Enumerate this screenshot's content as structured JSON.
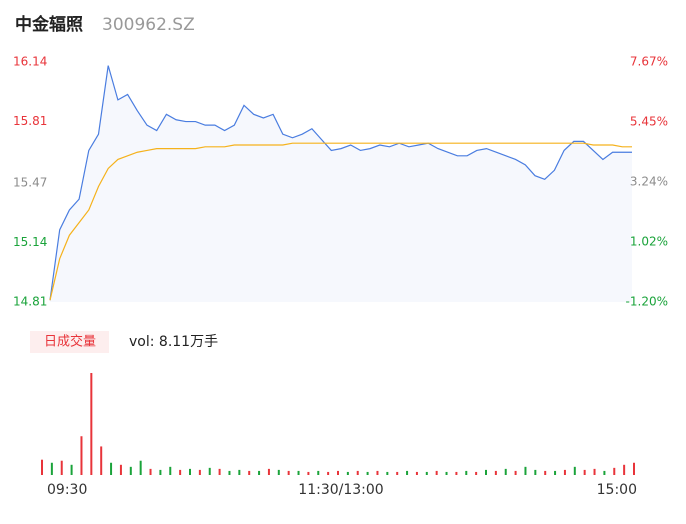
{
  "chart_data": [
    {
      "type": "line",
      "title": "中金辐照",
      "subtitle": "300962.SZ",
      "x": [
        0,
        4,
        8,
        12,
        16,
        20,
        24,
        28,
        32,
        36,
        40,
        44,
        48,
        52,
        56,
        60,
        64,
        68,
        72,
        76,
        80,
        84,
        88,
        92,
        96,
        100,
        104,
        108,
        112,
        116,
        120,
        124,
        128,
        132,
        136,
        140,
        144,
        148,
        152,
        156,
        160,
        164,
        168,
        172,
        176,
        180,
        184,
        188,
        192,
        196,
        200,
        204,
        208,
        212,
        216,
        220,
        224,
        228,
        232,
        236,
        240
      ],
      "xlim": [
        0,
        240
      ],
      "xticks": [
        {
          "value": 0,
          "label": "09:30"
        },
        {
          "value": 120,
          "label": "11:30/13:00"
        },
        {
          "value": 240,
          "label": "15:00"
        }
      ],
      "series": [
        {
          "color": "#4a7de0",
          "values": [
            14.82,
            15.21,
            15.32,
            15.38,
            15.65,
            15.74,
            16.12,
            15.93,
            15.96,
            15.87,
            15.79,
            15.76,
            15.85,
            15.82,
            15.81,
            15.81,
            15.79,
            15.79,
            15.76,
            15.79,
            15.9,
            15.85,
            15.83,
            15.85,
            15.74,
            15.72,
            15.74,
            15.77,
            15.71,
            15.65,
            15.66,
            15.68,
            15.65,
            15.66,
            15.68,
            15.67,
            15.69,
            15.67,
            15.68,
            15.69,
            15.66,
            15.64,
            15.62,
            15.62,
            15.65,
            15.66,
            15.64,
            15.62,
            15.6,
            15.57,
            15.51,
            15.49,
            15.54,
            15.65,
            15.7,
            15.7,
            15.65,
            15.6,
            15.64,
            15.64,
            15.64
          ]
        },
        {
          "color": "#f5b21c",
          "values": [
            14.82,
            15.05,
            15.18,
            15.25,
            15.32,
            15.45,
            15.55,
            15.6,
            15.62,
            15.64,
            15.65,
            15.66,
            15.66,
            15.66,
            15.66,
            15.66,
            15.67,
            15.67,
            15.67,
            15.68,
            15.68,
            15.68,
            15.68,
            15.68,
            15.68,
            15.69,
            15.69,
            15.69,
            15.69,
            15.69,
            15.69,
            15.69,
            15.69,
            15.69,
            15.69,
            15.69,
            15.69,
            15.69,
            15.69,
            15.69,
            15.69,
            15.69,
            15.69,
            15.69,
            15.69,
            15.69,
            15.69,
            15.69,
            15.69,
            15.69,
            15.69,
            15.69,
            15.69,
            15.69,
            15.69,
            15.69,
            15.68,
            15.68,
            15.68,
            15.67,
            15.67
          ]
        }
      ],
      "area_color": "#f6f8fd",
      "ylim": [
        14.81,
        16.14
      ],
      "yticks": [
        16.14,
        15.81,
        15.47,
        15.14,
        14.81
      ],
      "ytick_colors": [
        "#e8343a",
        "#e8343a",
        "#8c8c8c",
        "#1aa33a",
        "#1aa33a"
      ],
      "y2lim": [
        -1.2,
        7.67
      ],
      "y2ticks": [
        {
          "value": 7.67,
          "label": "7.67%"
        },
        {
          "value": 5.45,
          "label": "5.45%"
        },
        {
          "value": 3.24,
          "label": "3.24%"
        },
        {
          "value": 1.02,
          "label": "1.02%"
        },
        {
          "value": -1.2,
          "label": "-1.20%"
        }
      ],
      "y2tick_colors": [
        "#e8343a",
        "#e8343a",
        "#8c8c8c",
        "#1aa33a",
        "#1aa33a"
      ]
    },
    {
      "type": "bar",
      "label": "日成交量",
      "summary": "vol: 8.11万手",
      "x": [
        0,
        4,
        8,
        12,
        16,
        20,
        24,
        28,
        32,
        36,
        40,
        44,
        48,
        52,
        56,
        60,
        64,
        68,
        72,
        76,
        80,
        84,
        88,
        92,
        96,
        100,
        104,
        108,
        112,
        116,
        120,
        124,
        128,
        132,
        136,
        140,
        144,
        148,
        152,
        156,
        160,
        164,
        168,
        172,
        176,
        180,
        184,
        188,
        192,
        196,
        200,
        204,
        208,
        212,
        216,
        220,
        224,
        228,
        232,
        236,
        240
      ],
      "xlim": [
        0,
        240
      ],
      "values": [
        900,
        720,
        840,
        600,
        2280,
        6000,
        1680,
        720,
        600,
        480,
        840,
        360,
        300,
        480,
        300,
        360,
        300,
        420,
        360,
        240,
        300,
        240,
        240,
        360,
        300,
        240,
        240,
        180,
        240,
        180,
        240,
        180,
        240,
        180,
        240,
        180,
        180,
        240,
        180,
        180,
        240,
        180,
        180,
        240,
        180,
        300,
        240,
        360,
        240,
        480,
        300,
        240,
        240,
        300,
        480,
        300,
        360,
        240,
        420,
        600,
        720
      ],
      "colors": [
        "#e8343a",
        "#1aa33a",
        "#e8343a",
        "#1aa33a",
        "#e8343a",
        "#e8343a",
        "#e8343a",
        "#1aa33a",
        "#e8343a",
        "#1aa33a",
        "#1aa33a",
        "#e8343a",
        "#1aa33a",
        "#1aa33a",
        "#e8343a",
        "#1aa33a",
        "#e8343a",
        "#1aa33a",
        "#e8343a",
        "#1aa33a",
        "#1aa33a",
        "#e8343a",
        "#1aa33a",
        "#e8343a",
        "#1aa33a",
        "#e8343a",
        "#1aa33a",
        "#e8343a",
        "#1aa33a",
        "#e8343a",
        "#e8343a",
        "#1aa33a",
        "#e8343a",
        "#1aa33a",
        "#e8343a",
        "#1aa33a",
        "#e8343a",
        "#1aa33a",
        "#e8343a",
        "#1aa33a",
        "#e8343a",
        "#1aa33a",
        "#e8343a",
        "#1aa33a",
        "#e8343a",
        "#1aa33a",
        "#e8343a",
        "#1aa33a",
        "#e8343a",
        "#1aa33a",
        "#1aa33a",
        "#e8343a",
        "#1aa33a",
        "#e8343a",
        "#1aa33a",
        "#e8343a",
        "#e8343a",
        "#1aa33a",
        "#e8343a",
        "#e8343a",
        "#e8343a"
      ],
      "ylim": [
        0,
        6000
      ]
    }
  ]
}
